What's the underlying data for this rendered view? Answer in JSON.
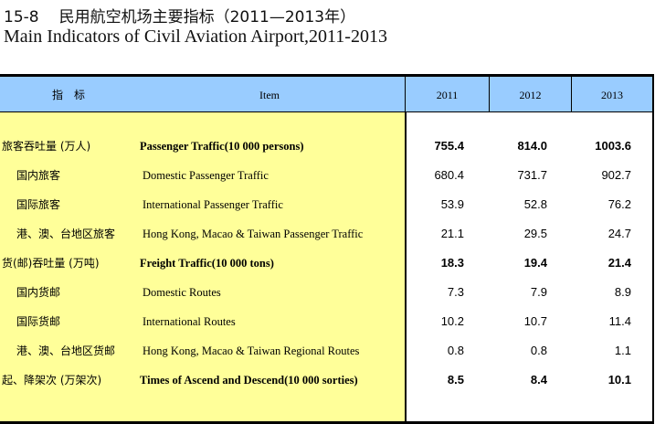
{
  "title": {
    "number": "15-8",
    "zh": "民用航空机场主要指标（2011—2013年）",
    "en": "Main Indicators of Civil Aviation Airport,2011-2013"
  },
  "header": {
    "zh": "指　标",
    "item": "Item",
    "years": [
      "2011",
      "2012",
      "2013"
    ]
  },
  "rows": [
    {
      "zh": "旅客吞吐量 (万人)",
      "en": "Passenger Traffic(10 000 persons)",
      "values": [
        "755.4",
        "814.0",
        "1003.6"
      ],
      "bold": true,
      "indent": false
    },
    {
      "zh": "国内旅客",
      "en": "Domestic Passenger Traffic",
      "values": [
        "680.4",
        "731.7",
        "902.7"
      ],
      "bold": false,
      "indent": true
    },
    {
      "zh": "国际旅客",
      "en": "International Passenger Traffic",
      "values": [
        "53.9",
        "52.8",
        "76.2"
      ],
      "bold": false,
      "indent": true
    },
    {
      "zh": "港、澳、台地区旅客",
      "en": "Hong Kong, Macao & Taiwan Passenger Traffic",
      "values": [
        "21.1",
        "29.5",
        "24.7"
      ],
      "bold": false,
      "indent": true
    },
    {
      "zh": "货(邮)吞吐量 (万吨)",
      "en": "Freight Traffic(10 000 tons)",
      "values": [
        "18.3",
        "19.4",
        "21.4"
      ],
      "bold": true,
      "indent": false
    },
    {
      "zh": "国内货邮",
      "en": "Domestic Routes",
      "values": [
        "7.3",
        "7.9",
        "8.9"
      ],
      "bold": false,
      "indent": true
    },
    {
      "zh": "国际货邮",
      "en": "International Routes",
      "values": [
        "10.2",
        "10.7",
        "11.4"
      ],
      "bold": false,
      "indent": true
    },
    {
      "zh": "港、澳、台地区货邮",
      "en": "Hong Kong, Macao & Taiwan Regional Routes",
      "values": [
        "0.8",
        "0.8",
        "1.1"
      ],
      "bold": false,
      "indent": true
    },
    {
      "zh": "起、降架次 (万架次)",
      "en": "Times of Ascend and Descend(10 000 sorties)",
      "values": [
        "8.5",
        "8.4",
        "10.1"
      ],
      "bold": true,
      "indent": false
    }
  ]
}
